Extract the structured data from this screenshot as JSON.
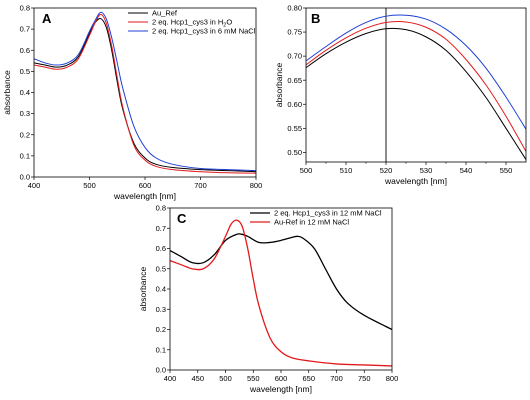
{
  "chart_data": [
    {
      "panel": "A",
      "type": "line",
      "xlabel": "wavelength [nm]",
      "ylabel": "absorbance",
      "xlim": [
        400,
        800
      ],
      "ylim": [
        0.0,
        0.8
      ],
      "xticks": [
        400,
        500,
        600,
        700,
        800
      ],
      "yticks": [
        0.0,
        0.1,
        0.2,
        0.3,
        0.4,
        0.5,
        0.6,
        0.7,
        0.8
      ],
      "legend_position": "top-right",
      "series": [
        {
          "name": "Au_Ref",
          "legend_main": "Au_Ref",
          "legend_sub": "",
          "legend_tail": "",
          "color": "#000000",
          "x": [
            400,
            420,
            440,
            460,
            480,
            500,
            510,
            520,
            530,
            540,
            550,
            560,
            580,
            600,
            620,
            650,
            700,
            750,
            800
          ],
          "y": [
            0.54,
            0.53,
            0.52,
            0.53,
            0.57,
            0.68,
            0.73,
            0.75,
            0.71,
            0.6,
            0.45,
            0.32,
            0.16,
            0.09,
            0.06,
            0.045,
            0.035,
            0.03,
            0.025
          ]
        },
        {
          "name": "2 eq. Hcp1_cys3 in H2O",
          "legend_main": "2 eq. Hcp1_cys3 in H",
          "legend_sub": "2",
          "legend_tail": "O",
          "color": "#e31a1c",
          "x": [
            400,
            420,
            440,
            460,
            480,
            500,
            510,
            520,
            530,
            540,
            550,
            560,
            580,
            600,
            620,
            650,
            700,
            750,
            800
          ],
          "y": [
            0.53,
            0.52,
            0.51,
            0.52,
            0.56,
            0.67,
            0.73,
            0.77,
            0.73,
            0.62,
            0.47,
            0.33,
            0.15,
            0.08,
            0.05,
            0.035,
            0.025,
            0.02,
            0.018
          ]
        },
        {
          "name": "2 eq. Hcp1_cys3 in 6 mM NaCl",
          "legend_main": "2 eq. Hcp1_cys3 in 6 mM NaCl",
          "legend_sub": "",
          "legend_tail": "",
          "color": "#1f3fd6",
          "x": [
            400,
            420,
            440,
            460,
            480,
            500,
            510,
            520,
            530,
            540,
            550,
            560,
            580,
            600,
            620,
            650,
            700,
            750,
            800
          ],
          "y": [
            0.56,
            0.54,
            0.53,
            0.54,
            0.58,
            0.69,
            0.74,
            0.78,
            0.75,
            0.66,
            0.54,
            0.42,
            0.24,
            0.14,
            0.09,
            0.06,
            0.04,
            0.035,
            0.03
          ]
        }
      ]
    },
    {
      "panel": "B",
      "type": "line",
      "xlabel": "wavelength [nm]",
      "ylabel": "absorbance",
      "xlim": [
        500,
        555
      ],
      "ylim": [
        0.48,
        0.8
      ],
      "xticks": [
        500,
        510,
        520,
        530,
        540,
        550
      ],
      "yticks": [
        0.5,
        0.55,
        0.6,
        0.65,
        0.7,
        0.75,
        0.8
      ],
      "vertical_line_x": 520,
      "series": [
        {
          "name": "Au_Ref",
          "color": "#000000",
          "x": [
            500,
            505,
            510,
            515,
            520,
            525,
            530,
            535,
            540,
            545,
            550,
            555
          ],
          "y": [
            0.676,
            0.705,
            0.729,
            0.747,
            0.757,
            0.755,
            0.74,
            0.712,
            0.668,
            0.614,
            0.55,
            0.485
          ]
        },
        {
          "name": "2 eq. Hcp1_cys3 in H2O",
          "color": "#e31a1c",
          "x": [
            500,
            505,
            510,
            515,
            520,
            525,
            530,
            535,
            540,
            545,
            550,
            555
          ],
          "y": [
            0.682,
            0.712,
            0.738,
            0.758,
            0.77,
            0.771,
            0.76,
            0.735,
            0.693,
            0.64,
            0.575,
            0.502
          ]
        },
        {
          "name": "2 eq. Hcp1_cys3 in 6 mM NaCl",
          "color": "#1f3fd6",
          "x": [
            500,
            505,
            510,
            515,
            520,
            525,
            530,
            535,
            540,
            545,
            550,
            555
          ],
          "y": [
            0.69,
            0.72,
            0.748,
            0.77,
            0.783,
            0.785,
            0.777,
            0.756,
            0.722,
            0.675,
            0.615,
            0.548
          ]
        }
      ]
    },
    {
      "panel": "C",
      "type": "line",
      "xlabel": "wavelength [nm]",
      "ylabel": "absorbance",
      "xlim": [
        400,
        800
      ],
      "ylim": [
        0.0,
        0.8
      ],
      "xticks": [
        400,
        450,
        500,
        550,
        600,
        650,
        700,
        750,
        800
      ],
      "yticks": [
        0.0,
        0.1,
        0.2,
        0.3,
        0.4,
        0.5,
        0.6,
        0.7,
        0.8
      ],
      "legend_position": "top-right",
      "series": [
        {
          "name": "2 eq. Hcp1_cys3 in 12 mM NaCl",
          "legend_main": "2 eq. Hcp1_cys3 in 12 mM NaCl",
          "legend_sub": "",
          "legend_tail": "",
          "color": "#000000",
          "x": [
            400,
            420,
            440,
            460,
            480,
            500,
            520,
            530,
            540,
            560,
            580,
            600,
            620,
            630,
            640,
            660,
            680,
            700,
            720,
            750,
            800
          ],
          "y": [
            0.59,
            0.56,
            0.53,
            0.53,
            0.57,
            0.64,
            0.67,
            0.67,
            0.66,
            0.63,
            0.63,
            0.64,
            0.655,
            0.66,
            0.65,
            0.6,
            0.5,
            0.4,
            0.33,
            0.27,
            0.2
          ]
        },
        {
          "name": "Au-Ref in 12 mM NaCl",
          "legend_main": "Au-Ref in 12 mM NaCl",
          "legend_sub": "",
          "legend_tail": "",
          "color": "#e31a1c",
          "x": [
            400,
            420,
            440,
            460,
            480,
            500,
            510,
            520,
            530,
            540,
            550,
            560,
            580,
            600,
            620,
            650,
            700,
            750,
            800
          ],
          "y": [
            0.54,
            0.52,
            0.5,
            0.5,
            0.55,
            0.66,
            0.72,
            0.74,
            0.71,
            0.6,
            0.45,
            0.32,
            0.16,
            0.09,
            0.06,
            0.045,
            0.03,
            0.025,
            0.02
          ]
        }
      ]
    }
  ]
}
